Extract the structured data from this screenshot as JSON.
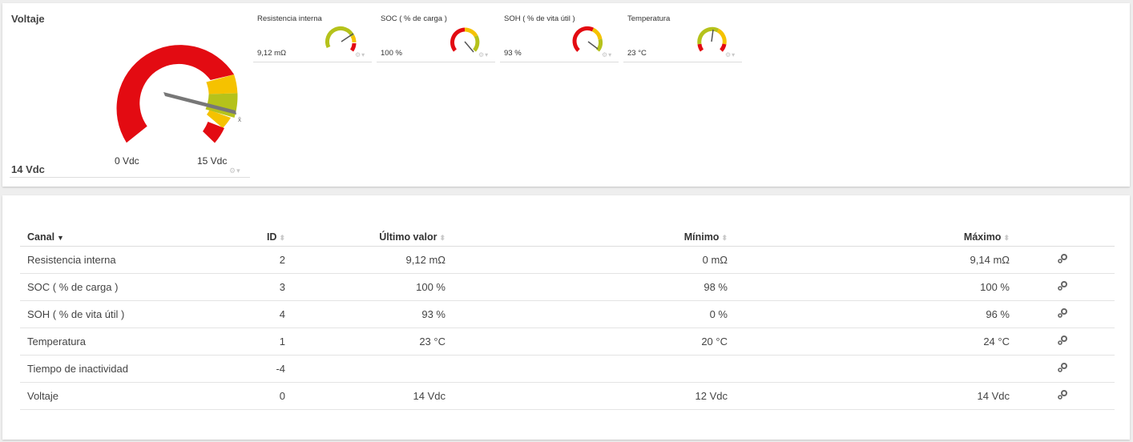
{
  "voltage_gauge": {
    "title": "Voltaje",
    "value": "14 Vdc",
    "min_label": "0 Vdc",
    "max_label": "15 Vdc",
    "mean_marker": "x̄",
    "reading": 14,
    "range": [
      0,
      15
    ],
    "icons": [
      "gear-icon",
      "pin-icon"
    ]
  },
  "mini_gauges": [
    {
      "title": "Resistencia interna",
      "value": "9,12 mΩ"
    },
    {
      "title": "SOC ( % de carga )",
      "value": "100 %"
    },
    {
      "title": "SOH ( % de vita útil )",
      "value": "93 %"
    },
    {
      "title": "Temperatura",
      "value": "23 °C"
    }
  ],
  "colors": {
    "red": "#e30b12",
    "yellow": "#f5c200",
    "green": "#b5c21b",
    "needle": "#777777"
  },
  "table": {
    "headers": {
      "channel": "Canal",
      "id": "ID",
      "last": "Último valor",
      "min": "Mínimo",
      "max": "Máximo"
    },
    "rows": [
      {
        "channel": "Resistencia interna",
        "id": "2",
        "last": "9,12 mΩ",
        "min": "0 mΩ",
        "max": "9,14 mΩ"
      },
      {
        "channel": "SOC ( % de carga )",
        "id": "3",
        "last": "100 %",
        "min": "98 %",
        "max": "100 %"
      },
      {
        "channel": "SOH ( % de vita útil )",
        "id": "4",
        "last": "93 %",
        "min": "0 %",
        "max": "96 %"
      },
      {
        "channel": "Temperatura",
        "id": "1",
        "last": "23 °C",
        "min": "20 °C",
        "max": "24 °C"
      },
      {
        "channel": "Tiempo de inactividad",
        "id": "-4",
        "last": "",
        "min": "",
        "max": ""
      },
      {
        "channel": "Voltaje",
        "id": "0",
        "last": "14 Vdc",
        "min": "12 Vdc",
        "max": "14 Vdc"
      }
    ]
  }
}
